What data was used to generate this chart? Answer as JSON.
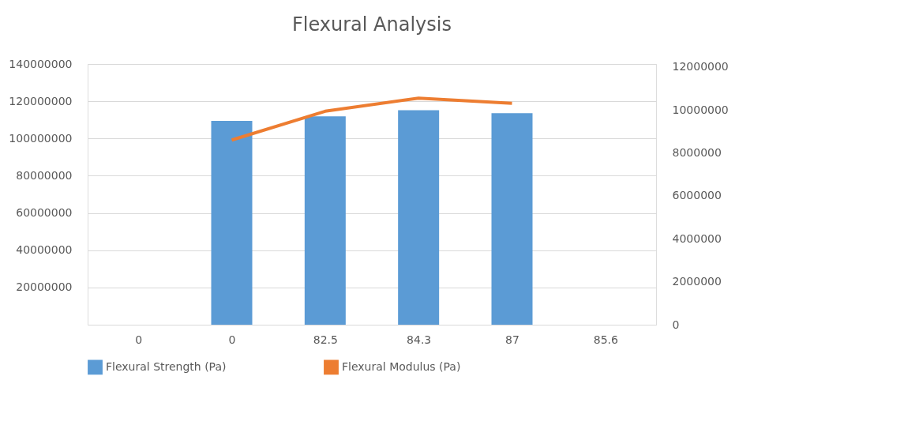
{
  "chart_data": {
    "type": "bar",
    "title": "Flexural Analysis",
    "categories": [
      "0",
      "0",
      "82.5",
      "84.3",
      "87",
      "85.6"
    ],
    "series": [
      {
        "name": "Flexural Strength (Pa)",
        "color": "#5b9bd5",
        "values": [
          null,
          109500000,
          111900000,
          115200000,
          113600000,
          null
        ]
      },
      {
        "name": "Flexural Modulus (Pa)",
        "type": "line",
        "axis": "y2",
        "color": "#ed7d31",
        "values": [
          null,
          8600000,
          9940000,
          10550000,
          10310000,
          null
        ]
      }
    ],
    "ylim": [
      0,
      140000000
    ],
    "yticks": [
      {
        "value": 0,
        "label": null
      },
      20000000,
      40000000,
      60000000,
      80000000,
      100000000,
      120000000,
      140000000
    ],
    "y2lim": [
      0,
      12140000
    ],
    "y2ticks": [
      0,
      2000000,
      4000000,
      6000000,
      8000000,
      10000000,
      12000000
    ],
    "grid": "y",
    "legend": "bottom",
    "marker": "none",
    "line_style": "solid"
  }
}
